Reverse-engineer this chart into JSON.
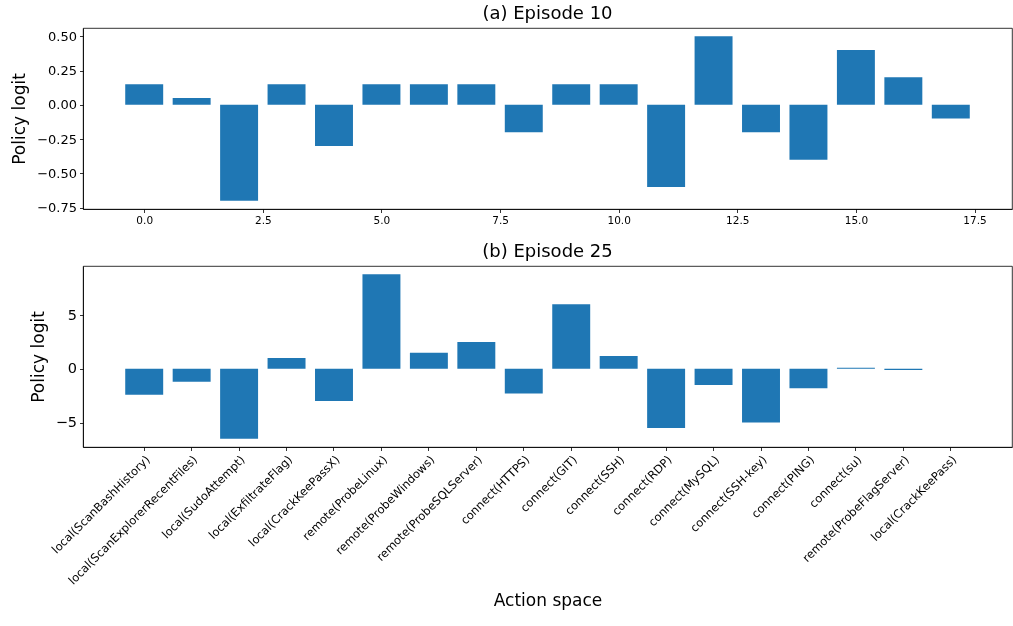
{
  "chart_data": [
    {
      "type": "bar",
      "title": "(a) Episode 10",
      "ylabel": "Policy logit",
      "x": [
        0,
        1,
        2,
        3,
        4,
        5,
        6,
        7,
        8,
        9,
        10,
        11,
        12,
        13,
        14,
        15,
        16,
        17
      ],
      "values": [
        0.15,
        0.05,
        -0.7,
        0.15,
        -0.3,
        0.15,
        0.15,
        0.15,
        -0.2,
        0.15,
        0.15,
        -0.6,
        0.5,
        -0.2,
        -0.4,
        0.4,
        0.2,
        -0.1
      ],
      "color": "#1f77b4",
      "xlim": [
        -1.29,
        18.29
      ],
      "xticks": [
        {
          "value": 0,
          "label": "0.0"
        },
        {
          "value": 2.5,
          "label": "2.5"
        },
        {
          "value": 5,
          "label": "5.0"
        },
        {
          "value": 7.5,
          "label": "7.5"
        },
        {
          "value": 10,
          "label": "10.0"
        },
        {
          "value": 12.5,
          "label": "12.5"
        },
        {
          "value": 15,
          "label": "15.0"
        },
        {
          "value": 17.5,
          "label": "17.5"
        }
      ],
      "ylim": [
        -0.76,
        0.56
      ],
      "yticks": [
        {
          "value": -0.75,
          "label": "−0.75"
        },
        {
          "value": -0.5,
          "label": "−0.50"
        },
        {
          "value": -0.25,
          "label": "−0.25"
        },
        {
          "value": 0,
          "label": "0.00"
        },
        {
          "value": 0.25,
          "label": "0.25"
        },
        {
          "value": 0.5,
          "label": "0.50"
        }
      ]
    },
    {
      "type": "bar",
      "title": "(b) Episode 25",
      "xlabel": "Action space",
      "ylabel": "Policy logit",
      "categories": [
        "local(ScanBashHistory)",
        "local(ScanExplorerRecentFiles)",
        "local(SudoAttempt)",
        "local(ExfiltrateFlag)",
        "local(CrackKeePassX)",
        "remote(ProbeLinux)",
        "remote(ProbeWindows)",
        "remote(ProbeSQLServer)",
        "connect(HTTPS)",
        "connect(GIT)",
        "connect(SSH)",
        "connect(RDP)",
        "connect(MySQL)",
        "connect(SSH-key)",
        "connect(PING)",
        "connect(su)",
        "remote(ProbeFlagServer)",
        "local(CrackKeePass)"
      ],
      "values": [
        -2.4,
        -1.2,
        -6.5,
        1.0,
        -3.0,
        8.8,
        1.5,
        2.5,
        -2.3,
        6.0,
        1.2,
        -5.5,
        -1.5,
        -5.0,
        -1.8,
        0.1,
        -0.1,
        null
      ],
      "color": "#1f77b4",
      "ylim": [
        -7.27,
        9.57
      ],
      "yticks": [
        {
          "value": -5,
          "label": "−5"
        },
        0,
        5
      ]
    }
  ]
}
